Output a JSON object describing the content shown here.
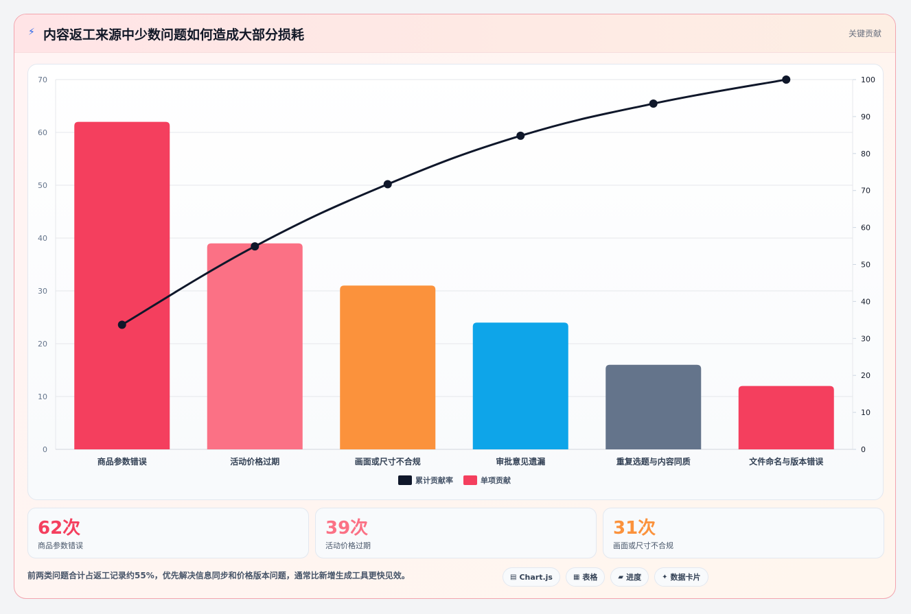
{
  "header": {
    "icon": "lightning-icon",
    "title": "内容返工来源中少数问题如何造成大部分损耗",
    "tag": "关键贡献"
  },
  "chart_data": {
    "type": "bar",
    "categories": [
      "商品参数错误",
      "活动价格过期",
      "画面或尺寸不合规",
      "审批意见遗漏",
      "重复选题与内容同质",
      "文件命名与版本错误"
    ],
    "series": [
      {
        "name": "单项贡献",
        "type": "bar",
        "axis": "left",
        "values": [
          62,
          39,
          31,
          24,
          16,
          12
        ],
        "colors": [
          "#f43f5e",
          "#fb7185",
          "#fb923c",
          "#0ea5e9",
          "#64748b",
          "#f43f5e"
        ]
      },
      {
        "name": "累计贡献率",
        "type": "line",
        "axis": "right",
        "values": [
          33.7,
          54.9,
          71.7,
          84.8,
          93.5,
          100
        ],
        "color": "#0f172a"
      }
    ],
    "y_left": {
      "range": [
        0,
        70
      ],
      "ticks": [
        0,
        10,
        20,
        30,
        40,
        50,
        60,
        70
      ]
    },
    "y_right": {
      "range": [
        0,
        100
      ],
      "ticks": [
        0,
        10,
        20,
        30,
        40,
        50,
        60,
        70,
        80,
        90,
        100
      ]
    },
    "legend": {
      "placement": "bottom",
      "items": [
        "累计贡献率",
        "单项贡献"
      ]
    },
    "grid": true
  },
  "stats": [
    {
      "value": "62次",
      "label": "商品参数错误",
      "color": "#f43f5e"
    },
    {
      "value": "39次",
      "label": "活动价格过期",
      "color": "#fb7185"
    },
    {
      "value": "31次",
      "label": "画面或尺寸不合规",
      "color": "#fb923c"
    }
  ],
  "footnote": "前两类问题合计占返工记录约55%，优先解决信息同步和价格版本问题，通常比新增生成工具更快见效。",
  "chips": [
    {
      "icon": "chart-icon",
      "label": "Chart.js"
    },
    {
      "icon": "table-icon",
      "label": "表格"
    },
    {
      "icon": "progress-icon",
      "label": "进度"
    },
    {
      "icon": "sparkle-icon",
      "label": "数据卡片"
    }
  ]
}
